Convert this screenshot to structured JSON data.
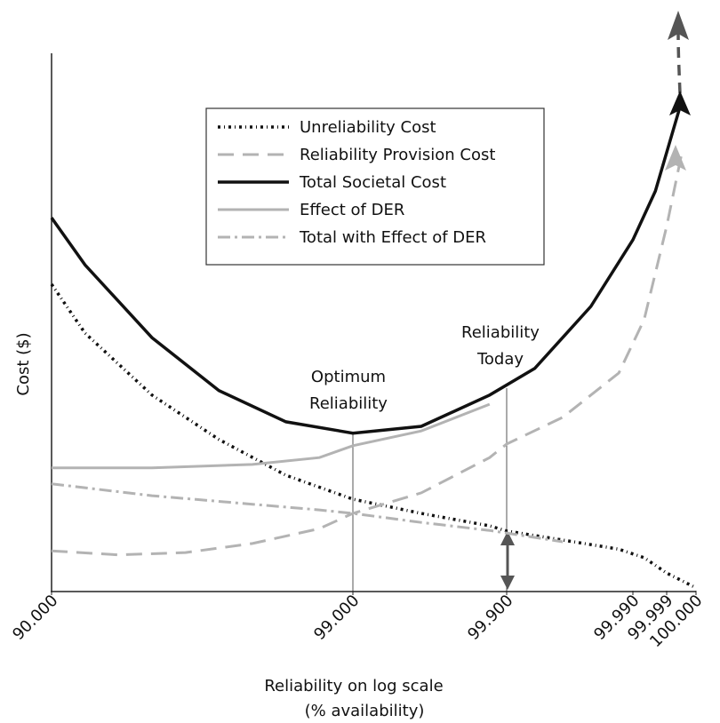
{
  "chart_data": {
    "type": "line",
    "y_label": "Cost ($)",
    "x_label": [
      "Reliability on log scale",
      "(% availability)"
    ],
    "xticks": [
      {
        "value": 90,
        "label": "90.000"
      },
      {
        "value": 99,
        "label": "99.000"
      },
      {
        "value": 99.9,
        "label": "99.900"
      },
      {
        "value": 99.99,
        "label": "99.990"
      },
      {
        "value": 99.999,
        "label": "99.999"
      },
      {
        "value": 100,
        "label": "100.000"
      }
    ],
    "ylim": [
      0,
      100
    ],
    "annotations": [
      [
        "Optimum",
        "Reliability"
      ],
      [
        "Reliability",
        "Today"
      ]
    ],
    "series": [
      {
        "name": "Unreliability Cost",
        "color": "#111111",
        "dash": "3 4 1 4",
        "width": 3.5,
        "x": [
          90,
          91,
          93,
          95,
          97,
          99,
          99.4,
          99.8,
          99.9,
          99.94,
          99.98,
          99.993,
          99.999,
          100
        ],
        "values": [
          53.9,
          45.3,
          34.4,
          26.6,
          20.3,
          16.1,
          13.6,
          11.4,
          10.5,
          8.9,
          7.3,
          5.8,
          3.1,
          0.5
        ]
      },
      {
        "name": "Reliability Provision Cost",
        "color": "#b3b3b3",
        "dash": "18 10",
        "width": 3,
        "x": [
          90,
          92,
          94,
          96,
          98,
          99,
          99.4,
          99.8,
          99.9,
          99.94,
          99.98,
          99.993,
          99.999,
          99.9995
        ],
        "values": [
          7.0,
          6.3,
          6.7,
          8.3,
          10.9,
          13.6,
          17.2,
          23.4,
          25.8,
          30.5,
          38.3,
          47.7,
          64.1,
          76.6
        ]
      },
      {
        "name": "Total Societal Cost",
        "color": "#111111",
        "dash": "none",
        "width": 3.5,
        "x": [
          90,
          91,
          93,
          95,
          97,
          99,
          99.4,
          99.8,
          99.92,
          99.96,
          99.99,
          99.996,
          99.9995
        ],
        "values": [
          65.6,
          57.3,
          44.5,
          35.2,
          29.7,
          27.7,
          28.9,
          34.4,
          39.1,
          50.0,
          61.7,
          70.3,
          85.9
        ]
      },
      {
        "name": "Effect of DER",
        "color": "#b3b3b3",
        "dash": "none",
        "width": 3,
        "x": [
          90,
          93,
          96,
          98,
          99,
          99.4,
          99.8
        ],
        "values": [
          21.6,
          21.6,
          22.2,
          23.4,
          25.5,
          28.1,
          32.8
        ]
      },
      {
        "name": "Total with Effect of DER",
        "color": "#b3b3b3",
        "dash": "14 5 3 5",
        "width": 3,
        "x": [
          90,
          93,
          96,
          98,
          99,
          99.4,
          99.8,
          99.94
        ],
        "values": [
          18.8,
          16.7,
          15.2,
          14.2,
          13.6,
          12.0,
          10.6,
          8.6
        ]
      }
    ]
  }
}
